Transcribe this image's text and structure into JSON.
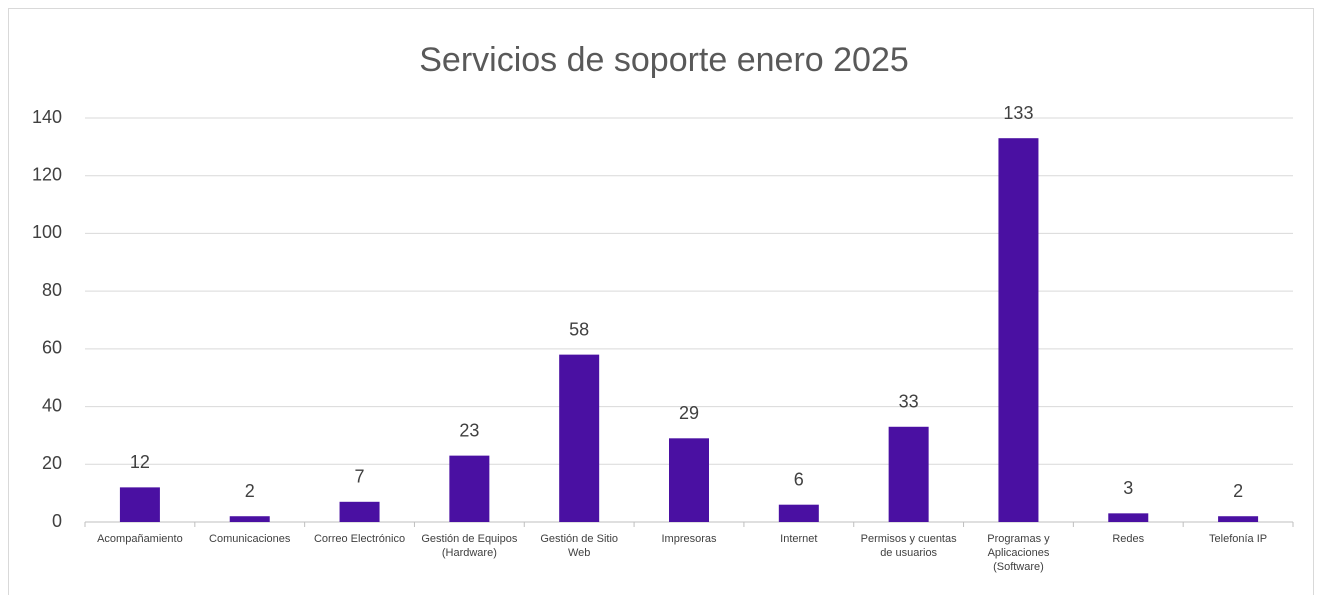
{
  "chart_data": {
    "type": "bar",
    "title": "Servicios de soporte enero 2025",
    "categories": [
      "Acompañamiento",
      "Comunicaciones",
      "Correo Electrónico",
      "Gestión de Equipos (Hardware)",
      "Gestión de Sitio Web",
      "Impresoras",
      "Internet",
      "Permisos y cuentas de usuarios",
      "Programas y Aplicaciones (Software)",
      "Redes",
      "Telefonía IP"
    ],
    "values": [
      12,
      2,
      7,
      23,
      58,
      29,
      6,
      33,
      133,
      3,
      2
    ],
    "color": "#4a10a2",
    "ylim": [
      0,
      140
    ],
    "yticks": [
      0,
      20,
      40,
      60,
      80,
      100,
      120,
      140
    ],
    "grid": true
  }
}
